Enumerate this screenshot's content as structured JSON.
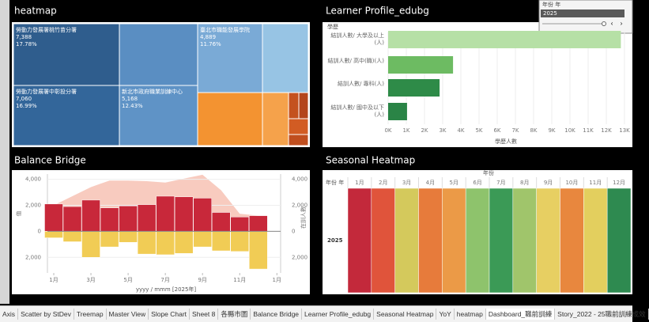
{
  "chart_data": [
    {
      "type": "treemap",
      "title": "heatmap",
      "labels": [
        "勞動力發展署桃竹苗分署",
        "勞動力發展署中彰投分署",
        "臺北市職能發展學院",
        "新北市政府職業訓練中心"
      ],
      "values": [
        7388,
        7060,
        4889,
        5168
      ],
      "value_labels": [
        "7,388",
        "7,060",
        "4,889",
        "5,168"
      ],
      "shares": [
        17.78,
        16.99,
        11.76,
        12.43
      ],
      "share_labels": [
        "17.78%",
        "16.99%",
        "11.76%",
        "12.43%"
      ],
      "colors": [
        "#2f5d8d",
        "#33669a",
        "#7aaad6",
        "#5f93c6"
      ]
    },
    {
      "type": "hbar",
      "title": "Learner Profile_edubg",
      "y_label": "學歷",
      "x_label": "學歷人數",
      "categories": [
        "結訓人數/ 大學及以上(人)",
        "結訓人數/ 高中(職)(人)",
        "結訓人數/ 專科(人)",
        "結訓人數/ 國中及以下(人)"
      ],
      "values": [
        12800,
        3570,
        2830,
        1040
      ],
      "colors": [
        "#b6e0a6",
        "#6dbb62",
        "#2e8b48",
        "#2a8446"
      ],
      "xlim": [
        0,
        13000
      ],
      "xticks": [
        {
          "value": 0,
          "label": "0K"
        },
        {
          "value": 1000,
          "label": "1K"
        },
        {
          "value": 2000,
          "label": "2K"
        },
        {
          "value": 3000,
          "label": "3K"
        },
        {
          "value": 4000,
          "label": "4K"
        },
        {
          "value": 5000,
          "label": "5K"
        },
        {
          "value": 6000,
          "label": "6K"
        },
        {
          "value": 7000,
          "label": "7K"
        },
        {
          "value": 8000,
          "label": "8K"
        },
        {
          "value": 9000,
          "label": "9K"
        },
        {
          "value": 10000,
          "label": "10K"
        },
        {
          "value": 11000,
          "label": "11K"
        },
        {
          "value": 12000,
          "label": "12K"
        },
        {
          "value": 13000,
          "label": "13K"
        }
      ]
    },
    {
      "type": "bridge",
      "title": "Balance Bridge",
      "x_label": "yyyy / mmm [2025年]",
      "y_label": "值",
      "y2_label": "在訓人數",
      "x": [
        1,
        2,
        3,
        4,
        5,
        6,
        7,
        8,
        9,
        10,
        11,
        12
      ],
      "xlim": [
        0.66,
        13.2
      ],
      "xticks": [
        {
          "value": 1,
          "label": "1月"
        },
        {
          "value": 3,
          "label": "3月"
        },
        {
          "value": 5,
          "label": "5月"
        },
        {
          "value": 7,
          "label": "7月"
        },
        {
          "value": 9,
          "label": "9月"
        },
        {
          "value": 11,
          "label": "11月"
        },
        {
          "value": 13,
          "label": "1月"
        }
      ],
      "ylim": [
        -3200,
        4400
      ],
      "yticks": [
        {
          "value": 4000,
          "label": "4,000"
        },
        {
          "value": 2000,
          "label": "2,000"
        },
        0,
        {
          "value": -2000,
          "label": "2,000"
        }
      ],
      "y2lim": [
        -3200,
        4400
      ],
      "y2ticks": [
        {
          "value": 4000,
          "label": "4,000"
        },
        {
          "value": 2000,
          "label": "2,000"
        },
        0,
        {
          "value": -2000,
          "label": "2,000"
        }
      ],
      "grid": true,
      "series": [
        {
          "color": "#c8283a",
          "values": [
            2100,
            1900,
            2400,
            1800,
            1950,
            2050,
            2700,
            2650,
            2550,
            1450,
            1100,
            1200
          ]
        },
        {
          "color": "#f1cc55",
          "values": [
            -500,
            -800,
            -2000,
            -1200,
            -850,
            -1750,
            -1800,
            -1700,
            -1200,
            -1500,
            -1550,
            -2900
          ]
        },
        {
          "color": "#f6b9aa",
          "axis": "y2",
          "values": [
            2000,
            2700,
            3400,
            3900,
            3900,
            3850,
            3750,
            4050,
            4350,
            3150,
            1350,
            1200
          ]
        }
      ]
    },
    {
      "type": "heatmap",
      "title": "Seasonal Heatmap",
      "x_label": "年份",
      "row_header": "年份 年",
      "columns": [
        "1月",
        "2月",
        "3月",
        "4月",
        "5月",
        "6月",
        "7月",
        "8月",
        "9月",
        "10月",
        "11月",
        "12月"
      ],
      "rows": [
        "2025"
      ],
      "colors": [
        [
          "#c3293b",
          "#e0543b",
          "#d4c95c",
          "#e77b3b",
          "#eb9a47",
          "#8ec36c",
          "#3b9a56",
          "#a0c56b",
          "#e7cf62",
          "#e8873e",
          "#e3cf5e",
          "#2e8a50"
        ]
      ]
    }
  ],
  "filter": {
    "title": "年份 年",
    "value": "2025"
  },
  "tabs": [
    "Axis",
    "Scatter by StDev",
    "Treemap",
    "Master View",
    "Slope Chart",
    "Sheet 8",
    "各縣市圖",
    "Balance Bridge",
    "Learner Profile_edubg",
    "Seasonal Heatmap",
    "YoY",
    "heatmap",
    "Dashboard_職前訓練",
    "Story_2022 - 25職前訓練成效"
  ],
  "active_tab": 12
}
